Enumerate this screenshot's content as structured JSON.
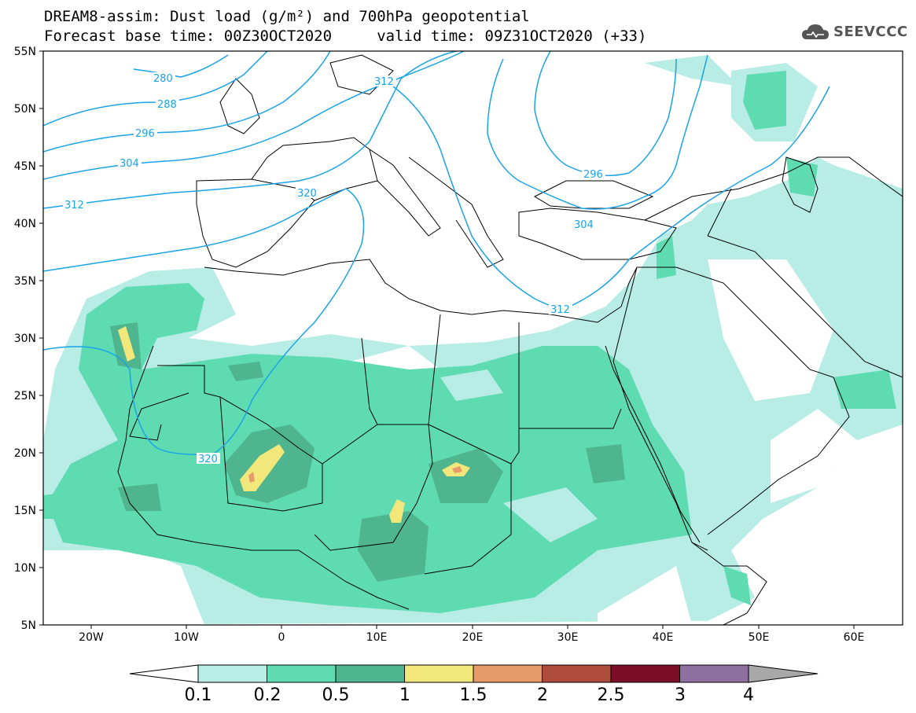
{
  "header": {
    "title_line1": "DREAM8-assim: Dust load (g/m²) and 700hPa geopotential",
    "title_line2": "Forecast base time: 00Z30OCT2020     valid time: 09Z31OCT2020 (+33)",
    "logo_text": "SEEVCCC"
  },
  "map": {
    "lon_range": [
      -25,
      65
    ],
    "lat_range": [
      5,
      55
    ],
    "lat_labels": [
      "55N",
      "50N",
      "45N",
      "40N",
      "35N",
      "30N",
      "25N",
      "20N",
      "15N",
      "10N",
      "5N"
    ],
    "lon_labels": [
      "20W",
      "10W",
      "0",
      "10E",
      "20E",
      "30E",
      "40E",
      "50E",
      "60E"
    ],
    "contour_labels": [
      "280",
      "288",
      "296",
      "304",
      "312",
      "320",
      "312",
      "296",
      "304",
      "312",
      "320"
    ]
  },
  "colorbar": {
    "colors": [
      "#b7ede4",
      "#5fdbb2",
      "#4fb58f",
      "#f2e77a",
      "#e79a6a",
      "#ad4b3c",
      "#7b0f2a",
      "#8f6f9f"
    ],
    "end_low": "#ffffff",
    "end_high": "#a8a8a8",
    "labels": [
      "0.1",
      "0.2",
      "0.5",
      "1",
      "1.5",
      "2",
      "2.5",
      "3",
      "4"
    ]
  },
  "colors": {
    "contour": "#1aa3e8",
    "border": "#000000"
  }
}
